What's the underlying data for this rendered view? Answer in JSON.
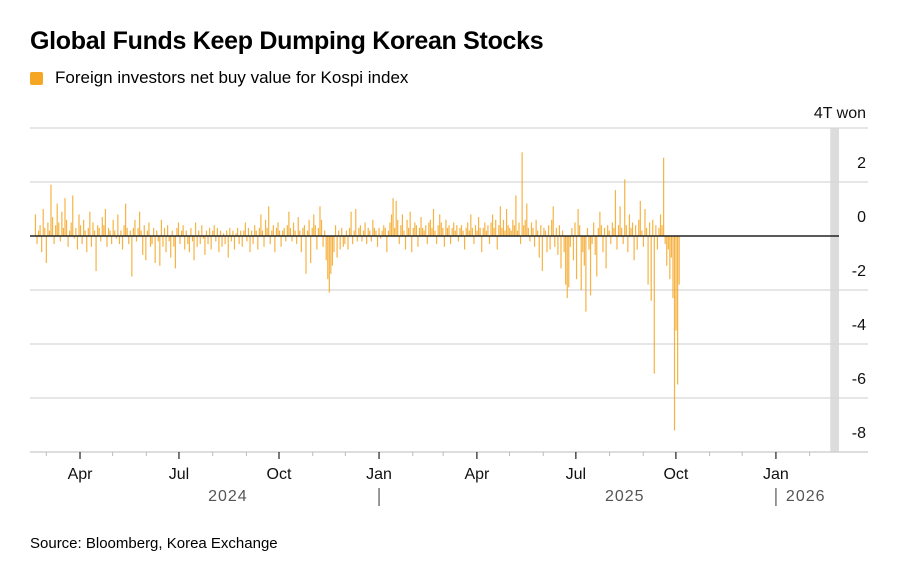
{
  "chart_data": {
    "type": "bar",
    "title": "Global Funds Keep Dumping Korean Stocks",
    "legend": [
      {
        "label": "Foreign investors net buy value for Kospi index",
        "color": "#f5a623"
      }
    ],
    "legend_placement": "top-left",
    "ylabel": "",
    "y_unit_label": "4T won",
    "ylim": [
      -8,
      4
    ],
    "yticks": [
      4,
      2,
      0,
      -2,
      -4,
      -6,
      -8
    ],
    "ytick_labels": [
      "4T won",
      "2",
      "0",
      "-2",
      "-4",
      "-6",
      "-8"
    ],
    "grid": true,
    "x_range": [
      "2024-02-15",
      "2026-02-28"
    ],
    "xticks": [
      {
        "label": "Apr",
        "date": "2024-04-01"
      },
      {
        "label": "Jul",
        "date": "2024-07-01"
      },
      {
        "label": "Oct",
        "date": "2024-10-01"
      },
      {
        "label": "Jan",
        "date": "2025-01-01"
      },
      {
        "label": "Apr",
        "date": "2025-04-01"
      },
      {
        "label": "Jul",
        "date": "2025-07-01"
      },
      {
        "label": "Oct",
        "date": "2025-10-01"
      },
      {
        "label": "Jan",
        "date": "2026-01-01"
      }
    ],
    "year_labels": [
      {
        "label": "2024",
        "date": "2024-08-15",
        "divider": false
      },
      {
        "label": "2025",
        "date": "2025-08-15",
        "divider": false
      },
      {
        "label": "2026",
        "date": "2026-01-01",
        "divider": true
      }
    ],
    "year_dividers": [
      "2025-01-01"
    ],
    "highlight_band": {
      "from": "2026-02-20",
      "to": "2026-02-28"
    },
    "series": [
      {
        "name": "Foreign investors net buy value for Kospi index",
        "color": "#f5a623",
        "start": "2024-02-20",
        "step_days": 1.43,
        "values": [
          0.8,
          -0.3,
          0.2,
          0.4,
          -0.6,
          1.0,
          0.3,
          -1.0,
          0.5,
          0.2,
          1.9,
          0.7,
          -0.3,
          0.4,
          1.2,
          0.5,
          -0.2,
          0.9,
          0.3,
          1.4,
          0.6,
          -0.4,
          0.2,
          0.5,
          1.5,
          -0.1,
          0.3,
          -0.5,
          0.8,
          0.4,
          -0.3,
          0.6,
          0.2,
          -0.6,
          0.3,
          0.9,
          -0.4,
          0.5,
          0.2,
          -1.3,
          0.4,
          0.3,
          -0.2,
          0.7,
          0.4,
          1.0,
          -0.4,
          0.3,
          0.2,
          -0.3,
          0.6,
          0.2,
          -0.1,
          0.8,
          -0.3,
          0.2,
          -0.5,
          0.4,
          1.2,
          0.3,
          -0.3,
          0.2,
          -1.5,
          0.3,
          0.6,
          -0.2,
          0.3,
          0.9,
          0.2,
          -0.7,
          0.4,
          -0.9,
          0.2,
          0.5,
          -0.4,
          -0.3,
          0.3,
          -1.0,
          0.2,
          -0.2,
          -1.1,
          0.6,
          -0.4,
          0.3,
          -0.6,
          0.4,
          -0.2,
          -0.8,
          0.2,
          -0.4,
          -1.2,
          0.3,
          0.5,
          -0.3,
          0.2,
          0.4,
          -0.5,
          0.2,
          -0.3,
          -0.6,
          0.3,
          -0.2,
          -0.9,
          0.5,
          -0.4,
          0.2,
          -0.3,
          0.4,
          -0.1,
          -0.7,
          0.2,
          -0.3,
          0.3,
          -0.5,
          0.2,
          0.4,
          -0.2,
          0.3,
          -0.6,
          0.2,
          -0.4,
          0.1,
          -0.3,
          0.2,
          -0.8,
          0.3,
          -0.2,
          0.2,
          -0.5,
          0.1,
          0.3,
          -0.3,
          0.2,
          -0.4,
          0.2,
          0.5,
          -0.2,
          0.3,
          -0.6,
          0.2,
          -0.3,
          0.4,
          0.2,
          -0.5,
          0.3,
          0.8,
          0.2,
          -0.4,
          0.6,
          0.3,
          1.1,
          -0.3,
          0.2,
          0.4,
          -0.6,
          0.3,
          0.5,
          0.2,
          -0.4,
          0.2,
          0.3,
          -0.2,
          0.4,
          0.9,
          0.3,
          -0.2,
          0.5,
          0.2,
          -0.3,
          0.7,
          0.2,
          -0.6,
          0.3,
          0.4,
          -1.4,
          0.2,
          0.6,
          -1.0,
          0.3,
          0.8,
          0.4,
          -0.5,
          0.3,
          1.1,
          0.6,
          -0.4,
          0.2,
          -0.9,
          -1.6,
          -2.1,
          -1.4,
          -1.1,
          -0.6,
          0.4,
          -0.8,
          0.2,
          -0.5,
          0.3,
          -0.4,
          -0.3,
          0.2,
          -0.5,
          0.3,
          0.9,
          -0.3,
          0.2,
          1.0,
          -0.2,
          0.3,
          0.4,
          -0.2,
          0.2,
          0.5,
          -0.3,
          0.3,
          0.2,
          -0.2,
          0.6,
          0.3,
          0.2,
          -0.4,
          0.3,
          -0.1,
          0.2,
          0.4,
          0.3,
          -0.6,
          0.2,
          0.5,
          0.8,
          1.4,
          0.3,
          1.3,
          0.6,
          -0.3,
          0.4,
          0.8,
          0.2,
          -0.5,
          0.6,
          0.3,
          0.9,
          -0.6,
          0.3,
          0.5,
          0.4,
          -0.4,
          0.3,
          0.7,
          0.3,
          0.2,
          0.4,
          -0.3,
          0.5,
          0.6,
          0.3,
          1.0,
          0.2,
          -0.3,
          0.4,
          0.8,
          0.5,
          0.3,
          -0.4,
          0.6,
          0.3,
          0.4,
          -0.3,
          0.3,
          0.5,
          0.2,
          0.4,
          -0.2,
          0.3,
          0.4,
          0.2,
          -0.5,
          0.3,
          0.5,
          0.2,
          0.8,
          0.3,
          -0.3,
          0.4,
          0.2,
          0.7,
          0.3,
          -0.6,
          0.3,
          0.5,
          0.2,
          0.4,
          -0.3,
          0.5,
          0.8,
          0.3,
          0.6,
          -0.5,
          0.4,
          1.1,
          0.3,
          0.6,
          0.2,
          1.0,
          0.4,
          0.3,
          0.2,
          0.6,
          0.4,
          1.5,
          0.2,
          0.5,
          -0.3,
          3.1,
          0.4,
          0.6,
          1.2,
          0.3,
          -0.2,
          0.5,
          0.3,
          -0.4,
          0.6,
          0.2,
          -0.8,
          0.4,
          -1.3,
          0.3,
          0.2,
          -0.6,
          0.4,
          -0.5,
          0.6,
          1.1,
          -0.4,
          0.3,
          -0.7,
          0.4,
          -1.2,
          0.2,
          -0.6,
          -1.8,
          -2.3,
          -1.9,
          -0.4,
          0.3,
          -0.9,
          0.5,
          -1.6,
          1.0,
          0.4,
          -2.0,
          -0.6,
          -1.1,
          -2.8,
          0.3,
          -0.5,
          -2.2,
          -0.3,
          0.5,
          -0.7,
          -1.5,
          0.3,
          0.9,
          0.4,
          -0.6,
          0.3,
          -1.2,
          0.4,
          0.2,
          -0.3,
          0.5,
          0.3,
          1.7,
          -0.5,
          0.4,
          1.1,
          0.3,
          -0.3,
          2.1,
          0.4,
          -0.6,
          0.8,
          0.3,
          0.5,
          -0.9,
          0.4,
          -0.5,
          0.6,
          1.3,
          0.2,
          -0.4,
          1.0,
          0.3,
          -1.8,
          0.5,
          -2.4,
          0.6,
          -5.1,
          0.4,
          -0.5,
          0.3,
          0.8,
          0.4,
          2.9,
          -0.3,
          -1.1,
          -0.5,
          -1.6,
          -0.8,
          -2.3,
          -7.2,
          -3.5,
          -5.5,
          -1.8
        ]
      }
    ]
  },
  "footer": {
    "source": "Source: Bloomberg, Korea Exchange"
  }
}
